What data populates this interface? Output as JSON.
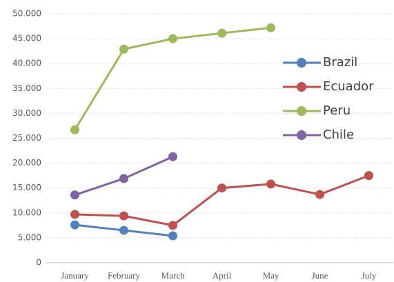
{
  "chart_data": {
    "type": "line",
    "categories": [
      "January",
      "February",
      "March",
      "April",
      "May",
      "June",
      "July"
    ],
    "series": [
      {
        "name": "Brazil",
        "color": "#4f81bd",
        "values": [
          7600,
          6500,
          5400,
          null,
          null,
          null,
          null
        ]
      },
      {
        "name": "Ecuador",
        "color": "#c0504d",
        "values": [
          9700,
          9400,
          7500,
          15000,
          15800,
          13700,
          17500
        ]
      },
      {
        "name": "Peru",
        "color": "#9bbb59",
        "values": [
          26700,
          42900,
          45000,
          46100,
          47200,
          null,
          null
        ]
      },
      {
        "name": "Chile",
        "color": "#8064a2",
        "values": [
          13600,
          16900,
          21300,
          null,
          null,
          null,
          null
        ]
      }
    ],
    "ylim": [
      0,
      50000
    ],
    "yticks": [
      0,
      {
        "value": 5000,
        "label": "5.000"
      },
      {
        "value": 10000,
        "label": "10.000"
      },
      {
        "value": 15000,
        "label": "15.000"
      },
      {
        "value": 20000,
        "label": "20.000"
      },
      {
        "value": 25000,
        "label": "25.000"
      },
      {
        "value": 30000,
        "label": "30.000"
      },
      {
        "value": 35000,
        "label": "35.000"
      },
      {
        "value": 40000,
        "label": "40.000"
      },
      {
        "value": 45000,
        "label": "45.000"
      },
      {
        "value": 50000,
        "label": "50.000"
      }
    ],
    "grid": true,
    "legend": "right"
  }
}
